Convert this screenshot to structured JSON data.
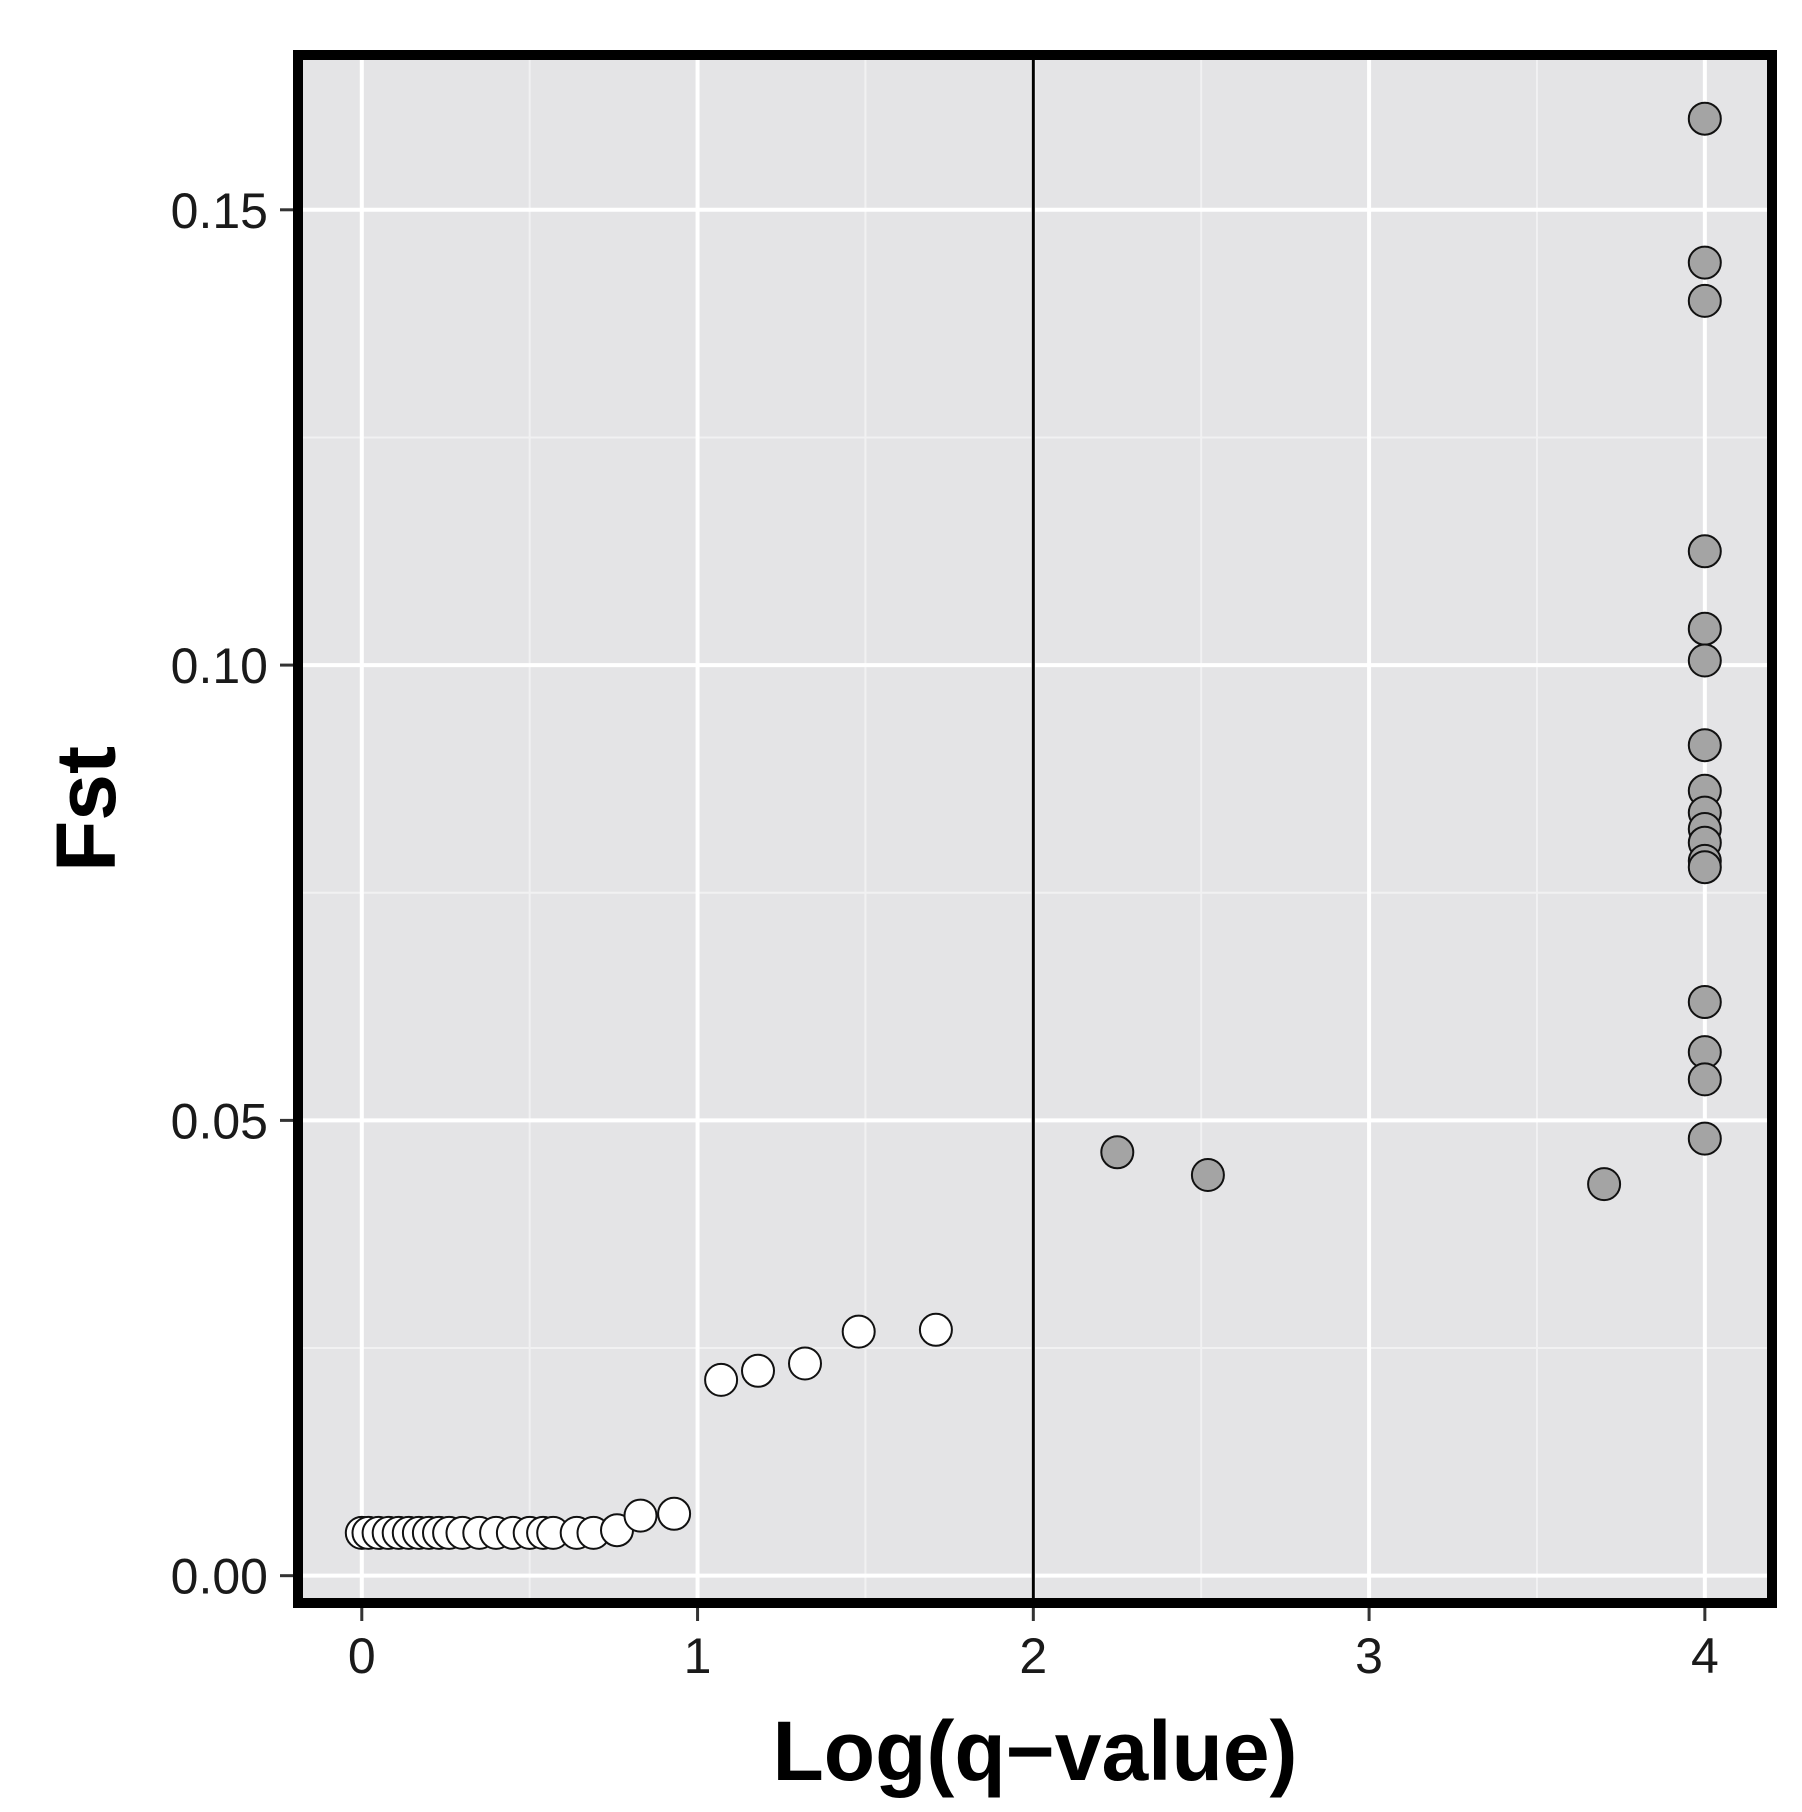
{
  "chart_data": {
    "type": "scatter",
    "title": "",
    "xlabel": "Log(q−value)",
    "ylabel": "Fst",
    "xlim": [
      -0.19,
      4.2
    ],
    "ylim": [
      -0.003,
      0.167
    ],
    "x_ticks": [
      0,
      1,
      2,
      3,
      4
    ],
    "x_tick_labels": [
      "0",
      "1",
      "2",
      "3",
      "4"
    ],
    "y_ticks": [
      0.0,
      0.05,
      0.1,
      0.15
    ],
    "y_tick_labels": [
      "0.00",
      "0.05",
      "0.10",
      "0.15"
    ],
    "grid": true,
    "vline": 2,
    "colors": {
      "panel": "#e4e4e6",
      "grid_major": "#ffffff",
      "grid_minor": "#f1f1f2",
      "neutral_fill": "#ffffff",
      "outlier_fill": "#a4a4a4",
      "point_stroke": "#111111",
      "frame": "#000000",
      "vline": "#000000"
    },
    "series": [
      {
        "fill": "neutral",
        "points": [
          [
            0.0,
            0.0047
          ],
          [
            0.02,
            0.0047
          ],
          [
            0.05,
            0.0047
          ],
          [
            0.08,
            0.0047
          ],
          [
            0.11,
            0.0047
          ],
          [
            0.14,
            0.0047
          ],
          [
            0.17,
            0.0047
          ],
          [
            0.2,
            0.0047
          ],
          [
            0.23,
            0.0047
          ],
          [
            0.26,
            0.0047
          ],
          [
            0.3,
            0.0047
          ],
          [
            0.35,
            0.0047
          ],
          [
            0.4,
            0.0047
          ],
          [
            0.45,
            0.0047
          ],
          [
            0.5,
            0.0047
          ],
          [
            0.54,
            0.0047
          ],
          [
            0.57,
            0.0047
          ],
          [
            0.64,
            0.0047
          ],
          [
            0.69,
            0.0047
          ],
          [
            0.76,
            0.005
          ],
          [
            0.83,
            0.0066
          ],
          [
            0.93,
            0.0068
          ],
          [
            1.07,
            0.0215
          ],
          [
            1.18,
            0.0225
          ],
          [
            1.32,
            0.0233
          ],
          [
            1.48,
            0.0268
          ],
          [
            1.71,
            0.027
          ]
        ]
      },
      {
        "fill": "outlier",
        "points": [
          [
            2.25,
            0.0465
          ],
          [
            2.52,
            0.044
          ],
          [
            3.7,
            0.043
          ],
          [
            4.0,
            0.16
          ],
          [
            4.0,
            0.1442
          ],
          [
            4.0,
            0.14
          ],
          [
            4.0,
            0.1125
          ],
          [
            4.0,
            0.104
          ],
          [
            4.0,
            0.1005
          ],
          [
            4.0,
            0.0912
          ],
          [
            4.0,
            0.0862
          ],
          [
            4.0,
            0.0838
          ],
          [
            4.0,
            0.082
          ],
          [
            4.0,
            0.0805
          ],
          [
            4.0,
            0.0785
          ],
          [
            4.0,
            0.0778
          ],
          [
            4.0,
            0.063
          ],
          [
            4.0,
            0.0575
          ],
          [
            4.0,
            0.0545
          ],
          [
            4.0,
            0.048
          ]
        ]
      }
    ]
  }
}
